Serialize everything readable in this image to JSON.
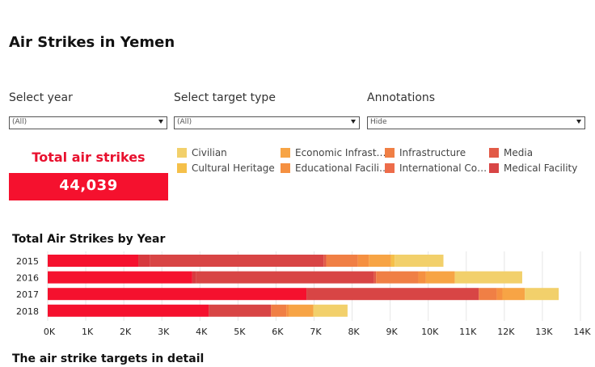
{
  "title": "Air Strikes in Yemen",
  "filters": {
    "year": {
      "label": "Select year",
      "value": "(All)"
    },
    "target_type": {
      "label": "Select target type",
      "value": "(All)"
    },
    "annotations": {
      "label": "Annotations",
      "value": "Hide"
    }
  },
  "kpi": {
    "label": "Total air strikes",
    "value": "44,039",
    "color": "#f5112e"
  },
  "legend": [
    {
      "label": "Civilian",
      "color": "#f2d06b"
    },
    {
      "label": "Cultural Heritage",
      "color": "#f5c04a"
    },
    {
      "label": "Economic Infrast…",
      "color": "#f7a445"
    },
    {
      "label": "Educational Facili…",
      "color": "#f59041"
    },
    {
      "label": "Infrastructure",
      "color": "#f07f45"
    },
    {
      "label": "International Co…",
      "color": "#ed6c4a"
    },
    {
      "label": "Media",
      "color": "#e25a47"
    },
    {
      "label": "Medical Facility",
      "color": "#d84545"
    }
  ],
  "chart_title": "Total Air Strikes by Year",
  "chart_data": {
    "type": "bar",
    "orientation": "horizontal",
    "stacked": true,
    "title": "Total Air Strikes by Year",
    "categories": [
      "2015",
      "2016",
      "2017",
      "2018"
    ],
    "xlim": [
      0,
      14000
    ],
    "x_ticks": [
      "0K",
      "1K",
      "2K",
      "3K",
      "4K",
      "5K",
      "6K",
      "7K",
      "8K",
      "9K",
      "10K",
      "11K",
      "12K",
      "13K",
      "14K"
    ],
    "grid": "vertical",
    "rows": [
      {
        "year": "2015",
        "segments": [
          {
            "value": 2380,
            "color": "#f5112e"
          },
          {
            "value": 300,
            "color": "#d73a3f"
          },
          {
            "value": 4570,
            "color": "#d84545"
          },
          {
            "value": 70,
            "color": "#e25a47"
          },
          {
            "value": 830,
            "color": "#f07f45"
          },
          {
            "value": 290,
            "color": "#f59041"
          },
          {
            "value": 580,
            "color": "#f7a445"
          },
          {
            "value": 100,
            "color": "#f5c04a"
          },
          {
            "value": 1280,
            "color": "#f2d06b"
          }
        ]
      },
      {
        "year": "2016",
        "segments": [
          {
            "value": 3800,
            "color": "#f5112e"
          },
          {
            "value": 90,
            "color": "#d73a3f"
          },
          {
            "value": 4680,
            "color": "#d84545"
          },
          {
            "value": 60,
            "color": "#e25a47"
          },
          {
            "value": 1110,
            "color": "#f07f45"
          },
          {
            "value": 200,
            "color": "#f59041"
          },
          {
            "value": 760,
            "color": "#f7a445"
          },
          {
            "value": 1770,
            "color": "#f2d06b"
          }
        ]
      },
      {
        "year": "2017",
        "segments": [
          {
            "value": 6800,
            "color": "#f5112e"
          },
          {
            "value": 4530,
            "color": "#d84545"
          },
          {
            "value": 470,
            "color": "#f07f45"
          },
          {
            "value": 150,
            "color": "#f59041"
          },
          {
            "value": 590,
            "color": "#f7a445"
          },
          {
            "value": 890,
            "color": "#f2d06b"
          }
        ]
      },
      {
        "year": "2018",
        "segments": [
          {
            "value": 4230,
            "color": "#f5112e"
          },
          {
            "value": 1640,
            "color": "#d84545"
          },
          {
            "value": 400,
            "color": "#f07f45"
          },
          {
            "value": 70,
            "color": "#f59041"
          },
          {
            "value": 640,
            "color": "#f7a445"
          },
          {
            "value": 900,
            "color": "#f2d06b"
          }
        ]
      }
    ]
  },
  "bottom_title": "The air strike targets in detail"
}
